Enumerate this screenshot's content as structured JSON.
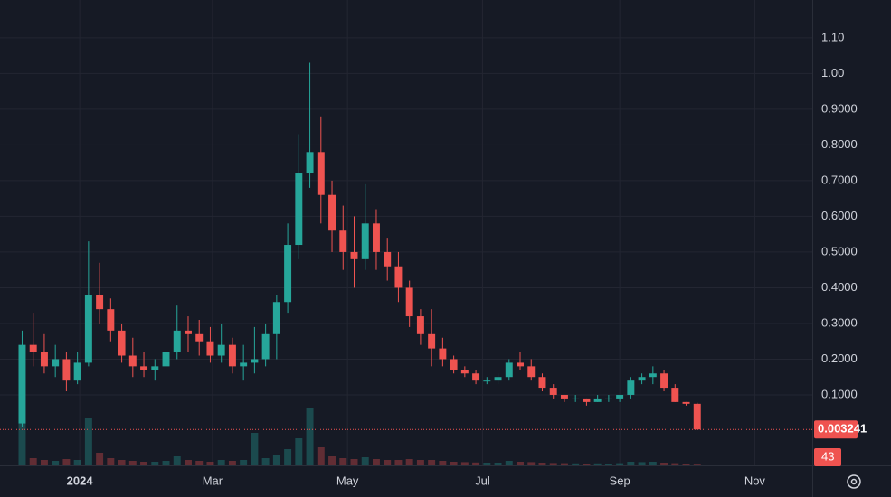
{
  "chart_data": {
    "type": "candlestick",
    "x": [
      0,
      5,
      10,
      15,
      20,
      25,
      30,
      35,
      40,
      45,
      50,
      55,
      60,
      65,
      70,
      75,
      80,
      85,
      90,
      95,
      100,
      105,
      110,
      115,
      120,
      125,
      130,
      135,
      140,
      145,
      150,
      155,
      160,
      165,
      170,
      175,
      180,
      185,
      190,
      195,
      200,
      205,
      210,
      215,
      220,
      225,
      230,
      235,
      240,
      245,
      250,
      255,
      260,
      265,
      270,
      275,
      280,
      285,
      290,
      295,
      300,
      305
    ],
    "open": [
      0.02,
      0.24,
      0.22,
      0.18,
      0.2,
      0.14,
      0.19,
      0.38,
      0.34,
      0.28,
      0.21,
      0.18,
      0.17,
      0.18,
      0.22,
      0.28,
      0.27,
      0.25,
      0.21,
      0.24,
      0.18,
      0.19,
      0.2,
      0.27,
      0.36,
      0.52,
      0.72,
      0.78,
      0.66,
      0.56,
      0.5,
      0.48,
      0.58,
      0.5,
      0.46,
      0.4,
      0.32,
      0.27,
      0.23,
      0.2,
      0.17,
      0.16,
      0.14,
      0.14,
      0.15,
      0.19,
      0.18,
      0.15,
      0.12,
      0.1,
      0.09,
      0.09,
      0.08,
      0.09,
      0.09,
      0.1,
      0.14,
      0.15,
      0.16,
      0.12,
      0.08,
      0.075
    ],
    "high": [
      0.28,
      0.33,
      0.27,
      0.24,
      0.22,
      0.22,
      0.53,
      0.47,
      0.37,
      0.3,
      0.26,
      0.22,
      0.2,
      0.24,
      0.35,
      0.32,
      0.31,
      0.29,
      0.3,
      0.26,
      0.24,
      0.29,
      0.3,
      0.38,
      0.58,
      0.83,
      1.03,
      0.88,
      0.7,
      0.63,
      0.6,
      0.69,
      0.62,
      0.54,
      0.5,
      0.42,
      0.34,
      0.34,
      0.26,
      0.21,
      0.18,
      0.17,
      0.15,
      0.16,
      0.2,
      0.22,
      0.2,
      0.16,
      0.13,
      0.1,
      0.1,
      0.09,
      0.1,
      0.1,
      0.1,
      0.15,
      0.16,
      0.18,
      0.17,
      0.13,
      0.08,
      0.078
    ],
    "low": [
      0.01,
      0.18,
      0.16,
      0.15,
      0.11,
      0.13,
      0.18,
      0.3,
      0.25,
      0.19,
      0.15,
      0.15,
      0.14,
      0.16,
      0.2,
      0.22,
      0.21,
      0.19,
      0.19,
      0.16,
      0.14,
      0.16,
      0.18,
      0.2,
      0.33,
      0.48,
      0.68,
      0.58,
      0.5,
      0.45,
      0.4,
      0.45,
      0.45,
      0.42,
      0.36,
      0.29,
      0.24,
      0.18,
      0.18,
      0.16,
      0.15,
      0.13,
      0.13,
      0.13,
      0.14,
      0.17,
      0.14,
      0.11,
      0.09,
      0.08,
      0.08,
      0.07,
      0.08,
      0.08,
      0.08,
      0.09,
      0.13,
      0.13,
      0.11,
      0.08,
      0.07,
      0.003
    ],
    "close": [
      0.24,
      0.22,
      0.18,
      0.2,
      0.14,
      0.19,
      0.38,
      0.34,
      0.28,
      0.21,
      0.18,
      0.17,
      0.18,
      0.22,
      0.28,
      0.27,
      0.25,
      0.21,
      0.24,
      0.18,
      0.19,
      0.2,
      0.27,
      0.36,
      0.52,
      0.72,
      0.78,
      0.66,
      0.56,
      0.5,
      0.48,
      0.58,
      0.5,
      0.46,
      0.4,
      0.32,
      0.27,
      0.23,
      0.2,
      0.17,
      0.16,
      0.14,
      0.14,
      0.15,
      0.19,
      0.18,
      0.15,
      0.12,
      0.1,
      0.09,
      0.09,
      0.08,
      0.09,
      0.09,
      0.1,
      0.14,
      0.15,
      0.16,
      0.12,
      0.08,
      0.075,
      0.003241
    ],
    "volume": [
      2500,
      400,
      300,
      250,
      350,
      300,
      2600,
      700,
      400,
      300,
      250,
      200,
      200,
      250,
      500,
      300,
      250,
      200,
      300,
      250,
      300,
      1800,
      400,
      600,
      900,
      1500,
      3200,
      1000,
      500,
      400,
      350,
      450,
      350,
      300,
      300,
      350,
      300,
      300,
      250,
      200,
      180,
      160,
      150,
      150,
      250,
      200,
      180,
      150,
      130,
      120,
      110,
      100,
      110,
      100,
      120,
      200,
      180,
      200,
      150,
      120,
      100,
      43
    ],
    "up_color": "#26a69a",
    "down_color": "#ef5350",
    "xlim": [
      -10,
      357
    ],
    "xticks": [
      {
        "value": 26,
        "label": "2024"
      },
      {
        "value": 86,
        "label": "Mar"
      },
      {
        "value": 147,
        "label": "May"
      },
      {
        "value": 208,
        "label": "Jul"
      },
      {
        "value": 270,
        "label": "Sep"
      },
      {
        "value": 331,
        "label": "Nov"
      }
    ],
    "ylim": [
      -0.0975,
      1.206
    ],
    "yticks": [
      {
        "value": 0.1,
        "label": "0.1000"
      },
      {
        "value": 0.2,
        "label": "0.2000"
      },
      {
        "value": 0.3,
        "label": "0.3000"
      },
      {
        "value": 0.4,
        "label": "0.4000"
      },
      {
        "value": 0.5,
        "label": "0.5000"
      },
      {
        "value": 0.6,
        "label": "0.6000"
      },
      {
        "value": 0.7,
        "label": "0.7000"
      },
      {
        "value": 0.8,
        "label": "0.8000"
      },
      {
        "value": 0.9,
        "label": "0.9000"
      },
      {
        "value": 1,
        "label": "1.00"
      },
      {
        "value": 1.1,
        "label": "1.10"
      }
    ],
    "vlim": [
      0,
      4000
    ],
    "grid": true
  }
}
